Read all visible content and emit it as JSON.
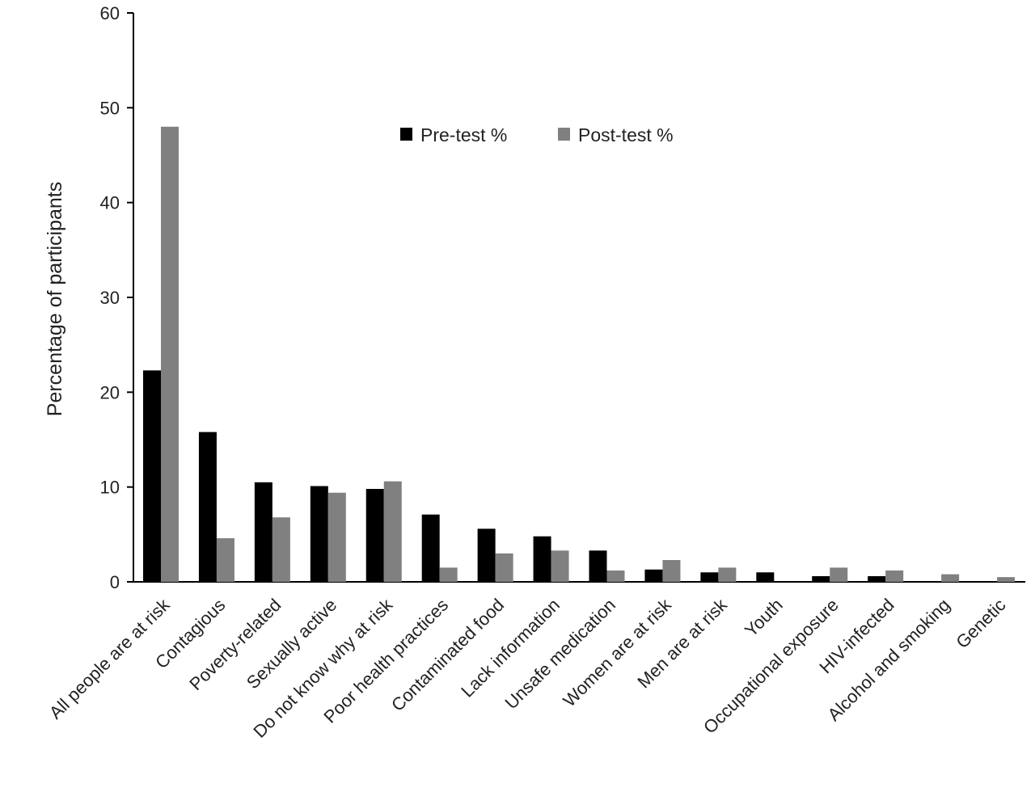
{
  "chart_data": {
    "type": "bar",
    "title": "",
    "xlabel": "",
    "ylabel": "Percentage of participants",
    "ylim": [
      0,
      60
    ],
    "yticks": [
      0,
      10,
      20,
      30,
      40,
      50,
      60
    ],
    "grid": false,
    "legend_position": "top-center",
    "categories": [
      "All people are at risk",
      "Contagious",
      "Poverty-related",
      "Sexually active",
      "Do not know why at risk",
      "Poor health practices",
      "Contaminated food",
      "Lack information",
      "Unsafe medication",
      "Women are at risk",
      "Men are at risk",
      "Youth",
      "Occupational exposure",
      "HIV-infected",
      "Alcohol and smoking",
      "Genetic"
    ],
    "series": [
      {
        "name": "Pre-test %",
        "color": "#000000",
        "values": [
          22.3,
          15.8,
          10.5,
          10.1,
          9.8,
          7.1,
          5.6,
          4.8,
          3.3,
          1.3,
          1.0,
          1.0,
          0.6,
          0.6,
          0,
          0
        ]
      },
      {
        "name": "Post-test %",
        "color": "#808080",
        "values": [
          48.0,
          4.6,
          6.8,
          9.4,
          10.6,
          1.5,
          3.0,
          3.3,
          1.2,
          2.3,
          1.5,
          0,
          1.5,
          1.2,
          0.8,
          0.5
        ]
      }
    ]
  }
}
